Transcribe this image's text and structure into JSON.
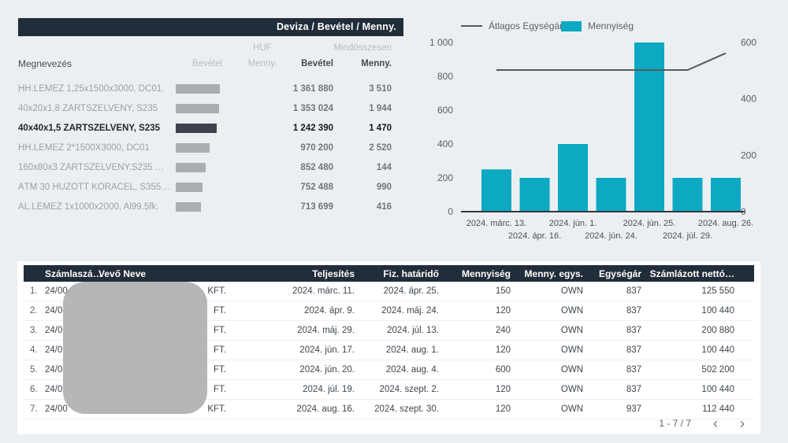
{
  "page": {
    "background": "#eceff1",
    "accent_teal": "#0da9c2",
    "header_navy": "#212d39"
  },
  "matrix": {
    "title": "Deviza / Bevétel / Menny.",
    "currency_group": "HUF",
    "total_group": "Mindösszesen",
    "columns": {
      "name": "Megnevezés",
      "bar_bevetel": "Bevétel",
      "bar_menny": "Menny.",
      "bevetel": "Bevétel",
      "menny": "Menny."
    },
    "rows": [
      {
        "name": "HH.LEMEZ 1,25x1500x3000, DC01.",
        "bevetel": "1 361 880",
        "menny": "3 510",
        "bar_pct": 100,
        "selected": false
      },
      {
        "name": "40x20x1,8 ZÁRTSZELVÉNY, S235",
        "bevetel": "1 353 024",
        "menny": "1 944",
        "bar_pct": 99,
        "selected": false
      },
      {
        "name": "40x40x1,5 ZÁRTSZELVÉNY, S235",
        "bevetel": "1 242 390",
        "menny": "1 470",
        "bar_pct": 92,
        "selected": true
      },
      {
        "name": "HH.LEMEZ 2*1500X3000, DC01",
        "bevetel": "970 200",
        "menny": "2 520",
        "bar_pct": 76,
        "selected": false
      },
      {
        "name": "160x80x3 ZÁRTSZELVÉNY,S235 …",
        "bevetel": "852 480",
        "menny": "144",
        "bar_pct": 68,
        "selected": false
      },
      {
        "name": "ÁTM 30 HÚZOTT KÖRACÉL, S355…",
        "bevetel": "752 488",
        "menny": "990",
        "bar_pct": 60,
        "selected": false
      },
      {
        "name": "AL.LEMEZ 1x1000x2000, Al99.5fk.",
        "bevetel": "713 699",
        "menny": "416",
        "bar_pct": 57,
        "selected": false
      }
    ]
  },
  "chart_data": {
    "type": "bar",
    "subtype": "combo bar+line, dual axis",
    "categories": [
      "2024. márc. 13.",
      "2024. ápr. 16.",
      "2024. jún. 1.",
      "2024. jún. 24.",
      "2024. jún. 25.",
      "2024. júl. 29.",
      "2024. aug. 26."
    ],
    "series": [
      {
        "name": "Átlagos Egységár",
        "type": "line",
        "axis": "left",
        "color": "#55595d",
        "values": [
          837,
          837,
          837,
          837,
          837,
          837,
          937
        ]
      },
      {
        "name": "Mennyiség",
        "type": "bar",
        "axis": "right",
        "color": "#0da9c2",
        "values": [
          150,
          120,
          240,
          120,
          600,
          120,
          120
        ]
      }
    ],
    "left_axis": {
      "max": 1000,
      "ticks": [
        {
          "label": "1 000",
          "value": 1000
        },
        {
          "label": "800",
          "value": 800
        },
        {
          "label": "600",
          "value": 600
        },
        {
          "label": "400",
          "value": 400
        },
        {
          "label": "200",
          "value": 200
        },
        {
          "label": "0",
          "value": 0
        }
      ]
    },
    "right_axis": {
      "max": 600,
      "ticks": [
        {
          "label": "600",
          "value": 600
        },
        {
          "label": "400",
          "value": 400
        },
        {
          "label": "200",
          "value": 200
        },
        {
          "label": "0",
          "value": 0
        }
      ]
    },
    "legend_position": "top",
    "grid": false
  },
  "invoice_table": {
    "headers": {
      "index": "",
      "szamlaszam": "Számlaszá…",
      "vevo": "Vevő Neve",
      "teljesites": "Teljesítés",
      "fiz_hatarido": "Fiz. határidő",
      "mennyiseg": "Mennyiség",
      "menny_egys": "Menny. egys.",
      "egysegar": "Egységár",
      "szamlazott": "Számlázott nettó…"
    },
    "rows": [
      {
        "idx": "1.",
        "szamlaszam": "24/00",
        "vevo": "KFT.",
        "teljesites": "2024. márc. 11.",
        "fiz_hatarido": "2024. ápr. 25.",
        "mennyiseg": "150",
        "menny_egys": "OWN",
        "egysegar": "837",
        "szamlazott": "125 550"
      },
      {
        "idx": "2.",
        "szamlaszam": "24/0",
        "vevo": "FT.",
        "teljesites": "2024. ápr. 9.",
        "fiz_hatarido": "2024. máj. 24.",
        "mennyiseg": "120",
        "menny_egys": "OWN",
        "egysegar": "837",
        "szamlazott": "100 440"
      },
      {
        "idx": "3.",
        "szamlaszam": "24/0",
        "vevo": "FT.",
        "teljesites": "2024. máj. 29.",
        "fiz_hatarido": "2024. júl. 13.",
        "mennyiseg": "240",
        "menny_egys": "OWN",
        "egysegar": "837",
        "szamlazott": "200 880"
      },
      {
        "idx": "4.",
        "szamlaszam": "24/0",
        "vevo": "FT.",
        "teljesites": "2024. jún. 17.",
        "fiz_hatarido": "2024. aug. 1.",
        "mennyiseg": "120",
        "menny_egys": "OWN",
        "egysegar": "837",
        "szamlazott": "100 440"
      },
      {
        "idx": "5.",
        "szamlaszam": "24/0",
        "vevo": "FT.",
        "teljesites": "2024. jún. 20.",
        "fiz_hatarido": "2024. aug. 4.",
        "mennyiseg": "600",
        "menny_egys": "OWN",
        "egysegar": "837",
        "szamlazott": "502 200"
      },
      {
        "idx": "6.",
        "szamlaszam": "24/0",
        "vevo": "FT.",
        "teljesites": "2024. júl. 19.",
        "fiz_hatarido": "2024. szept. 2.",
        "mennyiseg": "120",
        "menny_egys": "OWN",
        "egysegar": "837",
        "szamlazott": "100 440"
      },
      {
        "idx": "7.",
        "szamlaszam": "24/00",
        "vevo": "KFT.",
        "teljesites": "2024. aug. 16.",
        "fiz_hatarido": "2024. szept. 30.",
        "mennyiseg": "120",
        "menny_egys": "OWN",
        "egysegar": "937",
        "szamlazott": "112 440"
      }
    ],
    "pagination": {
      "label": "1 - 7 / 7",
      "prev": "‹",
      "next": "›"
    }
  },
  "redaction": {
    "color": "#b5b6b8"
  }
}
